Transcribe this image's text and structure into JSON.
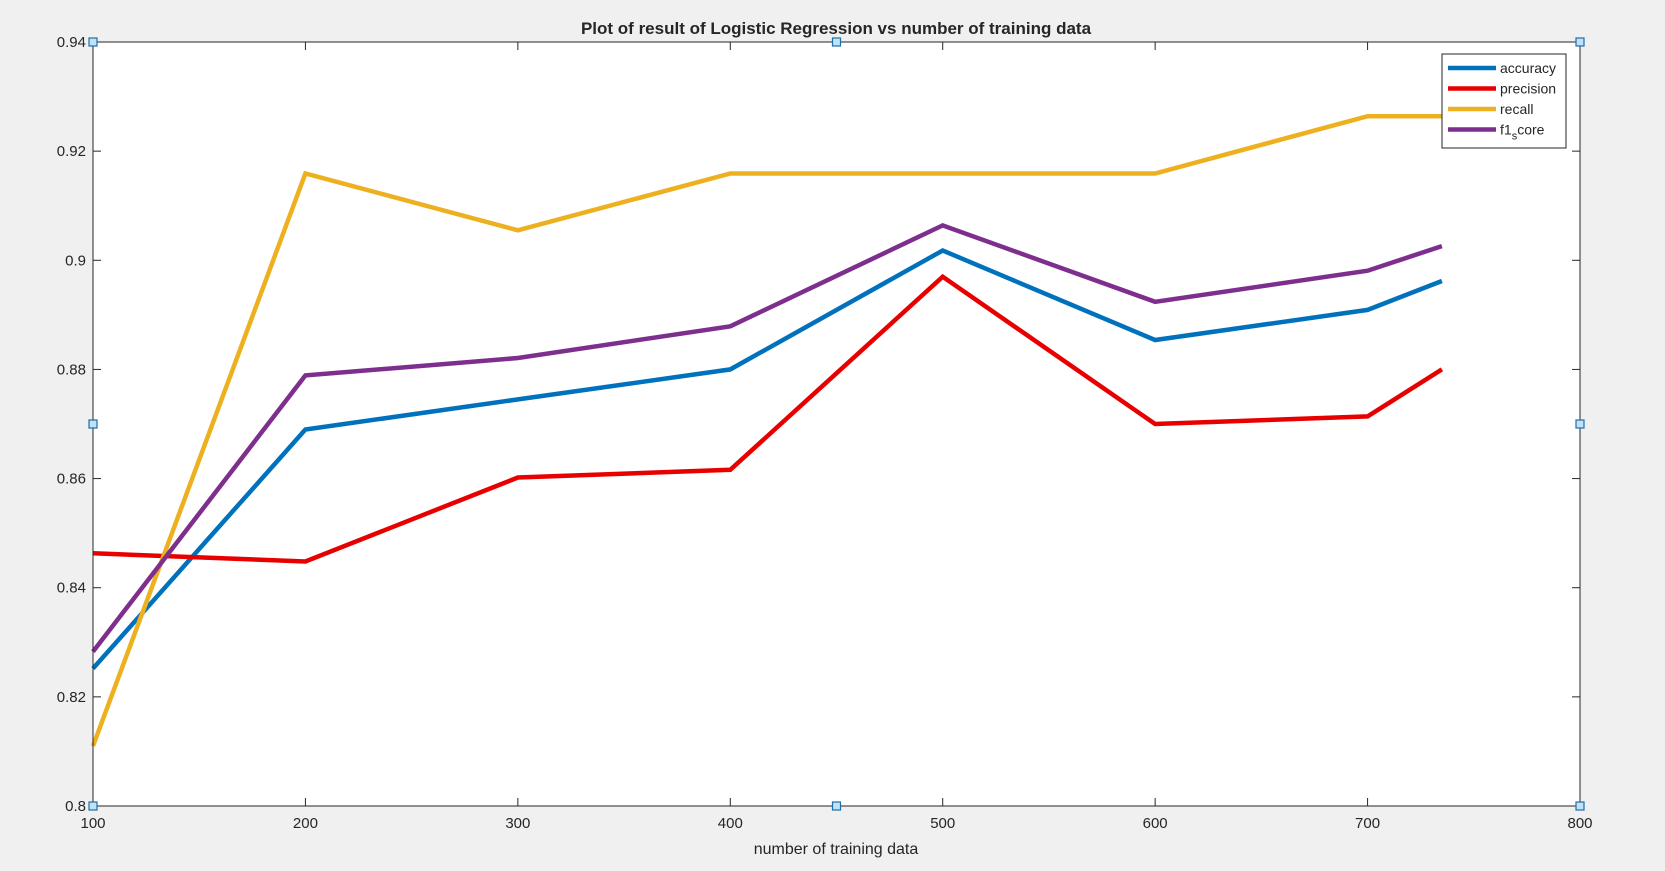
{
  "chart_data": {
    "type": "line",
    "title": "Plot of result of Logistic Regression vs number of training data",
    "xlabel": "number of training data",
    "ylabel": "",
    "xlim": [
      100,
      800
    ],
    "ylim": [
      0.8,
      0.94
    ],
    "xticks": [
      100,
      200,
      300,
      400,
      500,
      600,
      700,
      800
    ],
    "yticks": [
      0.8,
      0.82,
      0.84,
      0.86,
      0.88,
      0.9,
      0.92,
      0.94
    ],
    "ytick_labels": [
      "0.8",
      "0.82",
      "0.84",
      "0.86",
      "0.88",
      "0.9",
      "0.92",
      "0.94"
    ],
    "grid": false,
    "legend_position": "top-right",
    "x": [
      100,
      200,
      300,
      400,
      500,
      600,
      700,
      735
    ],
    "series": [
      {
        "name": "accuracy",
        "color": "#0072BD",
        "values": [
          0.8252,
          0.869,
          0.8745,
          0.88,
          0.9018,
          0.8854,
          0.8909,
          0.8962
        ]
      },
      {
        "name": "precision",
        "color": "#E80000",
        "values": [
          0.8463,
          0.8448,
          0.8602,
          0.8616,
          0.897,
          0.87,
          0.8714,
          0.88
        ]
      },
      {
        "name": "recall",
        "color": "#EDB120",
        "values": [
          0.811,
          0.9159,
          0.9055,
          0.9159,
          0.9159,
          0.9159,
          0.9264,
          0.9264
        ]
      },
      {
        "name": "f1",
        "subscript": "s",
        "suffix": "core",
        "color": "#7E2F8E",
        "values": [
          0.8283,
          0.8789,
          0.8821,
          0.8879,
          0.9064,
          0.8924,
          0.8981,
          0.9026
        ]
      }
    ]
  }
}
